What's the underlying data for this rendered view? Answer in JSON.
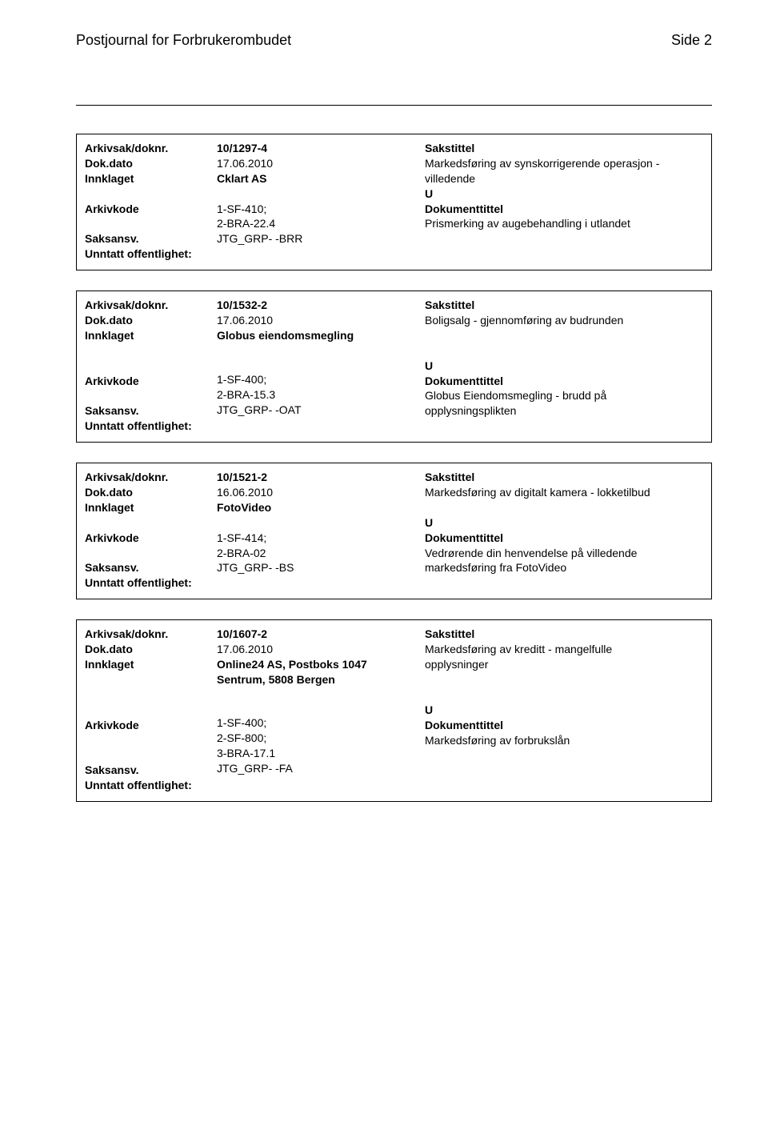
{
  "header": {
    "title": "Postjournal for Forbrukerombudet",
    "page_label": "Side 2"
  },
  "labels": {
    "arkivsak": "Arkivsak/doknr.",
    "dokdato": "Dok.dato",
    "innklaget": "Innklaget",
    "arkivkode": "Arkivkode",
    "saksansv": "Saksansv.",
    "unntatt": "Unntatt offentlighet:",
    "sakstittel": "Sakstittel",
    "dokumenttittel": "Dokumenttittel"
  },
  "records": [
    {
      "arkivsak": "10/1297-4",
      "dokdato": "17.06.2010",
      "innklaget": "Cklart  AS",
      "innklaget_lines": 1,
      "arkivkode": [
        "1-SF-410;",
        "2-BRA-22.4"
      ],
      "saksansv": "JTG_GRP- -BRR",
      "sakstittel": [
        "Markedsføring av synskorrigerende operasjon -",
        "villedende"
      ],
      "type": "U",
      "doktittel": [
        "Prismerking av augebehandling i utlandet"
      ]
    },
    {
      "arkivsak": "10/1532-2",
      "dokdato": "17.06.2010",
      "innklaget": "Globus eiendomsmegling",
      "innklaget_lines": 2,
      "arkivkode": [
        "1-SF-400;",
        "2-BRA-15.3"
      ],
      "saksansv": "JTG_GRP- -OAT",
      "sakstittel": [
        "Boligsalg - gjennomføring av budrunden"
      ],
      "type": "U",
      "doktittel": [
        "Globus Eiendomsmegling - brudd på",
        "opplysningsplikten"
      ]
    },
    {
      "arkivsak": "10/1521-2",
      "dokdato": "16.06.2010",
      "innklaget": "FotoVideo",
      "innklaget_lines": 1,
      "arkivkode": [
        "1-SF-414;",
        "2-BRA-02"
      ],
      "saksansv": "JTG_GRP- -BS",
      "sakstittel": [
        "Markedsføring av digitalt kamera - lokketilbud"
      ],
      "type": "U",
      "doktittel": [
        "Vedrørende din henvendelse på villedende",
        "markedsføring fra FotoVideo"
      ]
    },
    {
      "arkivsak": "10/1607-2",
      "dokdato": "17.06.2010",
      "innklaget": "Online24 AS, Postboks 1047 Sentrum, 5808 Bergen",
      "innklaget_lines": 3,
      "arkivkode": [
        "1-SF-400;",
        "2-SF-800;",
        "3-BRA-17.1"
      ],
      "saksansv": "JTG_GRP- -FA",
      "sakstittel": [
        "Markedsføring av kreditt - mangelfulle",
        "opplysninger"
      ],
      "type": "U",
      "doktittel": [
        "Markedsføring av forbrukslån"
      ]
    }
  ]
}
